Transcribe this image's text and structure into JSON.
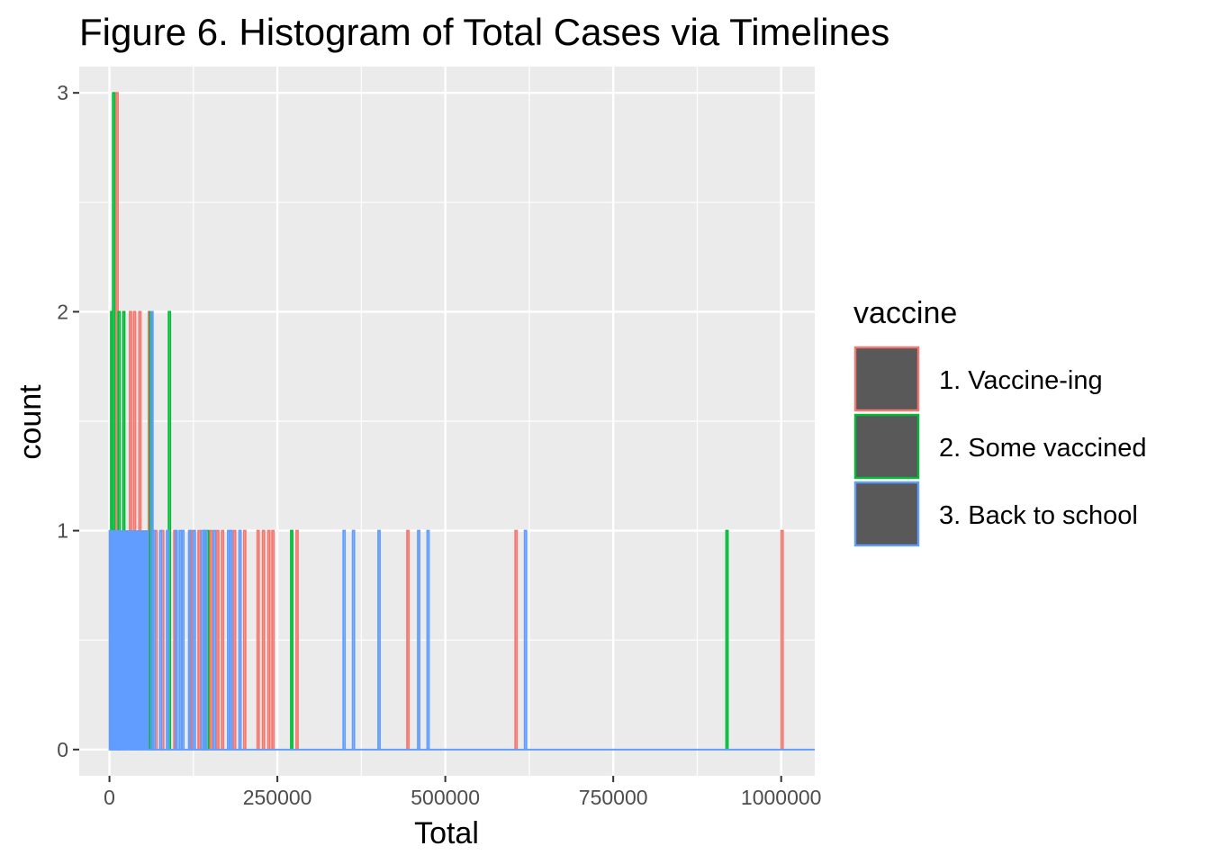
{
  "chart_data": {
    "type": "bar",
    "subtype": "histogram",
    "title": "Figure 6. Histogram of Total Cases via Timelines",
    "xlabel": "Total",
    "ylabel": "count",
    "xlim": [
      -45000,
      1050000
    ],
    "ylim": [
      -0.12,
      3.12
    ],
    "x_ticks": [
      0,
      250000,
      500000,
      750000,
      1000000
    ],
    "x_tick_labels": [
      "0",
      "250000",
      "500000",
      "750000",
      "1000000"
    ],
    "y_ticks": [
      0,
      1,
      2,
      3
    ],
    "y_tick_labels": [
      "0",
      "1",
      "2",
      "3"
    ],
    "grid": true,
    "panel_background": "#ebebeb",
    "grid_color": "#ffffff",
    "bar_fill": "#595959",
    "legend": {
      "title": "vaccine",
      "position": "right",
      "entries": [
        "1. Vaccine-ing",
        "2. Some vaccined",
        "3. Back to school"
      ]
    },
    "series": [
      {
        "name": "1. Vaccine-ing",
        "color": "#F8766D",
        "bars": [
          {
            "x": 10000,
            "count": 3
          },
          {
            "x": 30000,
            "count": 2
          },
          {
            "x": 36000,
            "count": 2
          },
          {
            "x": 44000,
            "count": 2
          },
          {
            "x": 58000,
            "count": 2
          },
          {
            "x": 68000,
            "count": 1
          },
          {
            "x": 78000,
            "count": 1
          },
          {
            "x": 96000,
            "count": 1
          },
          {
            "x": 120000,
            "count": 1
          },
          {
            "x": 132000,
            "count": 1
          },
          {
            "x": 150000,
            "count": 1
          },
          {
            "x": 160000,
            "count": 1
          },
          {
            "x": 167000,
            "count": 1
          },
          {
            "x": 185000,
            "count": 1
          },
          {
            "x": 200000,
            "count": 1
          },
          {
            "x": 220000,
            "count": 1
          },
          {
            "x": 228000,
            "count": 1
          },
          {
            "x": 236000,
            "count": 1
          },
          {
            "x": 242000,
            "count": 1
          },
          {
            "x": 278000,
            "count": 1
          },
          {
            "x": 443000,
            "count": 1
          },
          {
            "x": 604000,
            "count": 1
          },
          {
            "x": 1000000,
            "count": 1
          }
        ]
      },
      {
        "name": "2. Some vaccined",
        "color": "#00BA38",
        "bars": [
          {
            "x": 2000,
            "count": 2
          },
          {
            "x": 5000,
            "count": 3
          },
          {
            "x": 13000,
            "count": 2
          },
          {
            "x": 20000,
            "count": 2
          },
          {
            "x": 60000,
            "count": 2
          },
          {
            "x": 88000,
            "count": 2
          },
          {
            "x": 140000,
            "count": 1
          },
          {
            "x": 145000,
            "count": 1
          },
          {
            "x": 270000,
            "count": 1
          },
          {
            "x": 918000,
            "count": 1
          }
        ]
      },
      {
        "name": "3. Back to school",
        "color": "#619CFF",
        "bars": [
          {
            "x": 0,
            "count": 1
          },
          {
            "x": 62000,
            "count": 2
          },
          {
            "x": 65000,
            "count": 1
          },
          {
            "x": 75000,
            "count": 1
          },
          {
            "x": 85000,
            "count": 1
          },
          {
            "x": 98000,
            "count": 1
          },
          {
            "x": 104000,
            "count": 1
          },
          {
            "x": 108000,
            "count": 1
          },
          {
            "x": 118000,
            "count": 1
          },
          {
            "x": 125000,
            "count": 1
          },
          {
            "x": 137000,
            "count": 1
          },
          {
            "x": 142000,
            "count": 1
          },
          {
            "x": 155000,
            "count": 1
          },
          {
            "x": 176000,
            "count": 1
          },
          {
            "x": 180000,
            "count": 1
          },
          {
            "x": 193000,
            "count": 1
          },
          {
            "x": 348000,
            "count": 1
          },
          {
            "x": 362000,
            "count": 1
          },
          {
            "x": 400000,
            "count": 1
          },
          {
            "x": 459000,
            "count": 1
          },
          {
            "x": 473000,
            "count": 1
          },
          {
            "x": 618000,
            "count": 1
          }
        ],
        "block": {
          "x_start": 0,
          "x_end": 58000,
          "count": 1
        }
      }
    ]
  }
}
